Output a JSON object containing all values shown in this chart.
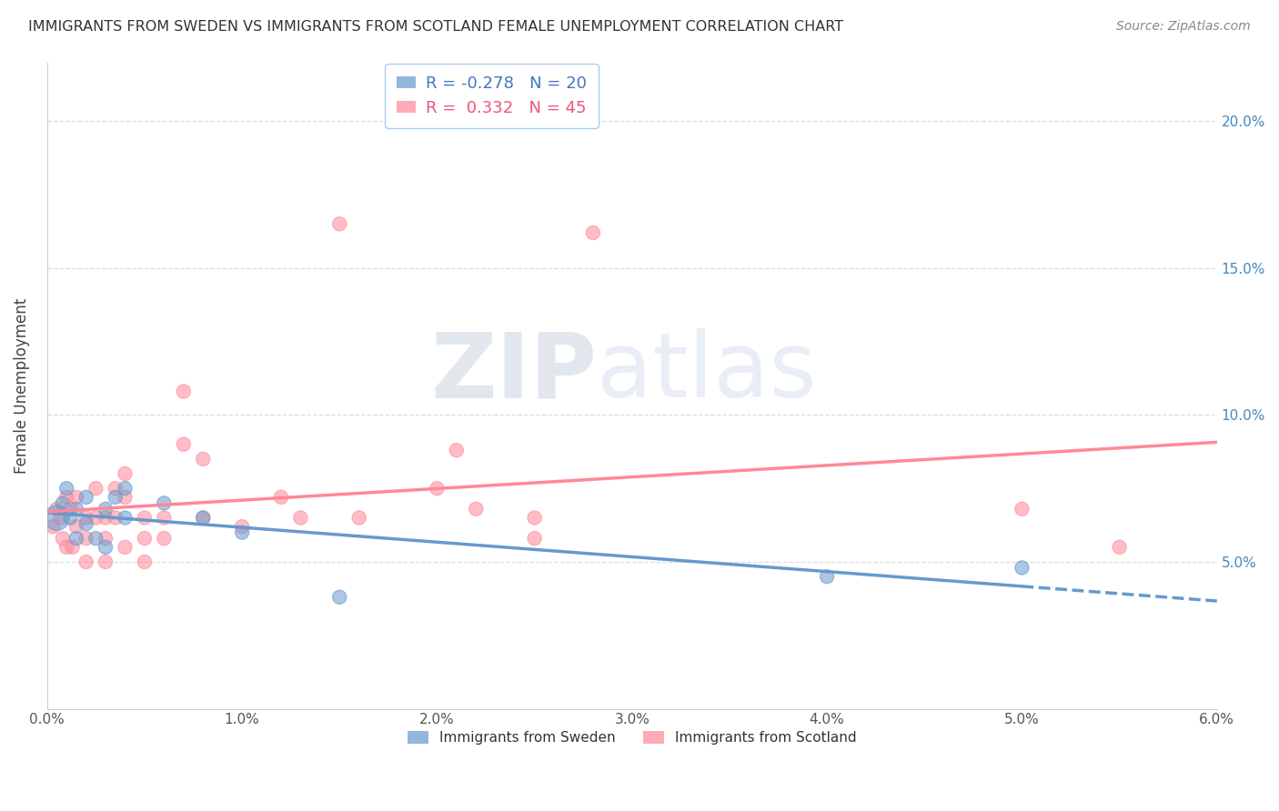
{
  "title": "IMMIGRANTS FROM SWEDEN VS IMMIGRANTS FROM SCOTLAND FEMALE UNEMPLOYMENT CORRELATION CHART",
  "source": "Source: ZipAtlas.com",
  "ylabel": "Female Unemployment",
  "xlim": [
    0.0,
    0.06
  ],
  "ylim": [
    0.0,
    0.22
  ],
  "yticks": [
    0.05,
    0.1,
    0.15,
    0.2
  ],
  "ytick_labels": [
    "5.0%",
    "10.0%",
    "15.0%",
    "20.0%"
  ],
  "xticks": [
    0.0,
    0.01,
    0.02,
    0.03,
    0.04,
    0.05,
    0.06
  ],
  "xtick_labels": [
    "0.0%",
    "1.0%",
    "2.0%",
    "3.0%",
    "4.0%",
    "5.0%",
    "6.0%"
  ],
  "sweden_color": "#6699CC",
  "scotland_color": "#FF8899",
  "sweden_R": -0.278,
  "sweden_N": 20,
  "scotland_R": 0.332,
  "scotland_N": 45,
  "watermark_zip": "ZIP",
  "watermark_atlas": "atlas",
  "legend_sweden": "Immigrants from Sweden",
  "legend_scotland": "Immigrants from Scotland",
  "sweden_x": [
    0.0005,
    0.0008,
    0.001,
    0.0012,
    0.0015,
    0.0015,
    0.002,
    0.002,
    0.0025,
    0.003,
    0.003,
    0.0035,
    0.004,
    0.004,
    0.006,
    0.008,
    0.01,
    0.015,
    0.04,
    0.05
  ],
  "sweden_y": [
    0.065,
    0.07,
    0.075,
    0.065,
    0.068,
    0.058,
    0.072,
    0.063,
    0.058,
    0.068,
    0.055,
    0.072,
    0.065,
    0.075,
    0.07,
    0.065,
    0.06,
    0.038,
    0.045,
    0.048
  ],
  "sweden_size": [
    400,
    120,
    120,
    120,
    120,
    120,
    120,
    120,
    120,
    120,
    120,
    120,
    120,
    120,
    120,
    120,
    120,
    120,
    120,
    120
  ],
  "scotland_x": [
    0.0003,
    0.0005,
    0.0007,
    0.0008,
    0.001,
    0.001,
    0.0012,
    0.0013,
    0.0015,
    0.0015,
    0.002,
    0.002,
    0.002,
    0.0025,
    0.0025,
    0.003,
    0.003,
    0.003,
    0.0035,
    0.0035,
    0.004,
    0.004,
    0.004,
    0.005,
    0.005,
    0.005,
    0.006,
    0.006,
    0.007,
    0.007,
    0.008,
    0.008,
    0.01,
    0.012,
    0.013,
    0.015,
    0.016,
    0.02,
    0.021,
    0.022,
    0.025,
    0.025,
    0.028,
    0.05,
    0.055
  ],
  "scotland_y": [
    0.062,
    0.068,
    0.065,
    0.058,
    0.072,
    0.055,
    0.068,
    0.055,
    0.062,
    0.072,
    0.065,
    0.058,
    0.05,
    0.075,
    0.065,
    0.065,
    0.058,
    0.05,
    0.075,
    0.065,
    0.08,
    0.072,
    0.055,
    0.065,
    0.058,
    0.05,
    0.065,
    0.058,
    0.09,
    0.108,
    0.065,
    0.085,
    0.062,
    0.072,
    0.065,
    0.165,
    0.065,
    0.075,
    0.088,
    0.068,
    0.065,
    0.058,
    0.162,
    0.068,
    0.055
  ],
  "scotland_size": [
    120,
    120,
    120,
    120,
    120,
    120,
    120,
    120,
    120,
    120,
    120,
    120,
    120,
    120,
    120,
    120,
    120,
    120,
    120,
    120,
    120,
    120,
    120,
    120,
    120,
    120,
    120,
    120,
    120,
    120,
    120,
    120,
    120,
    120,
    120,
    120,
    120,
    120,
    120,
    120,
    120,
    120,
    120,
    120,
    120
  ]
}
